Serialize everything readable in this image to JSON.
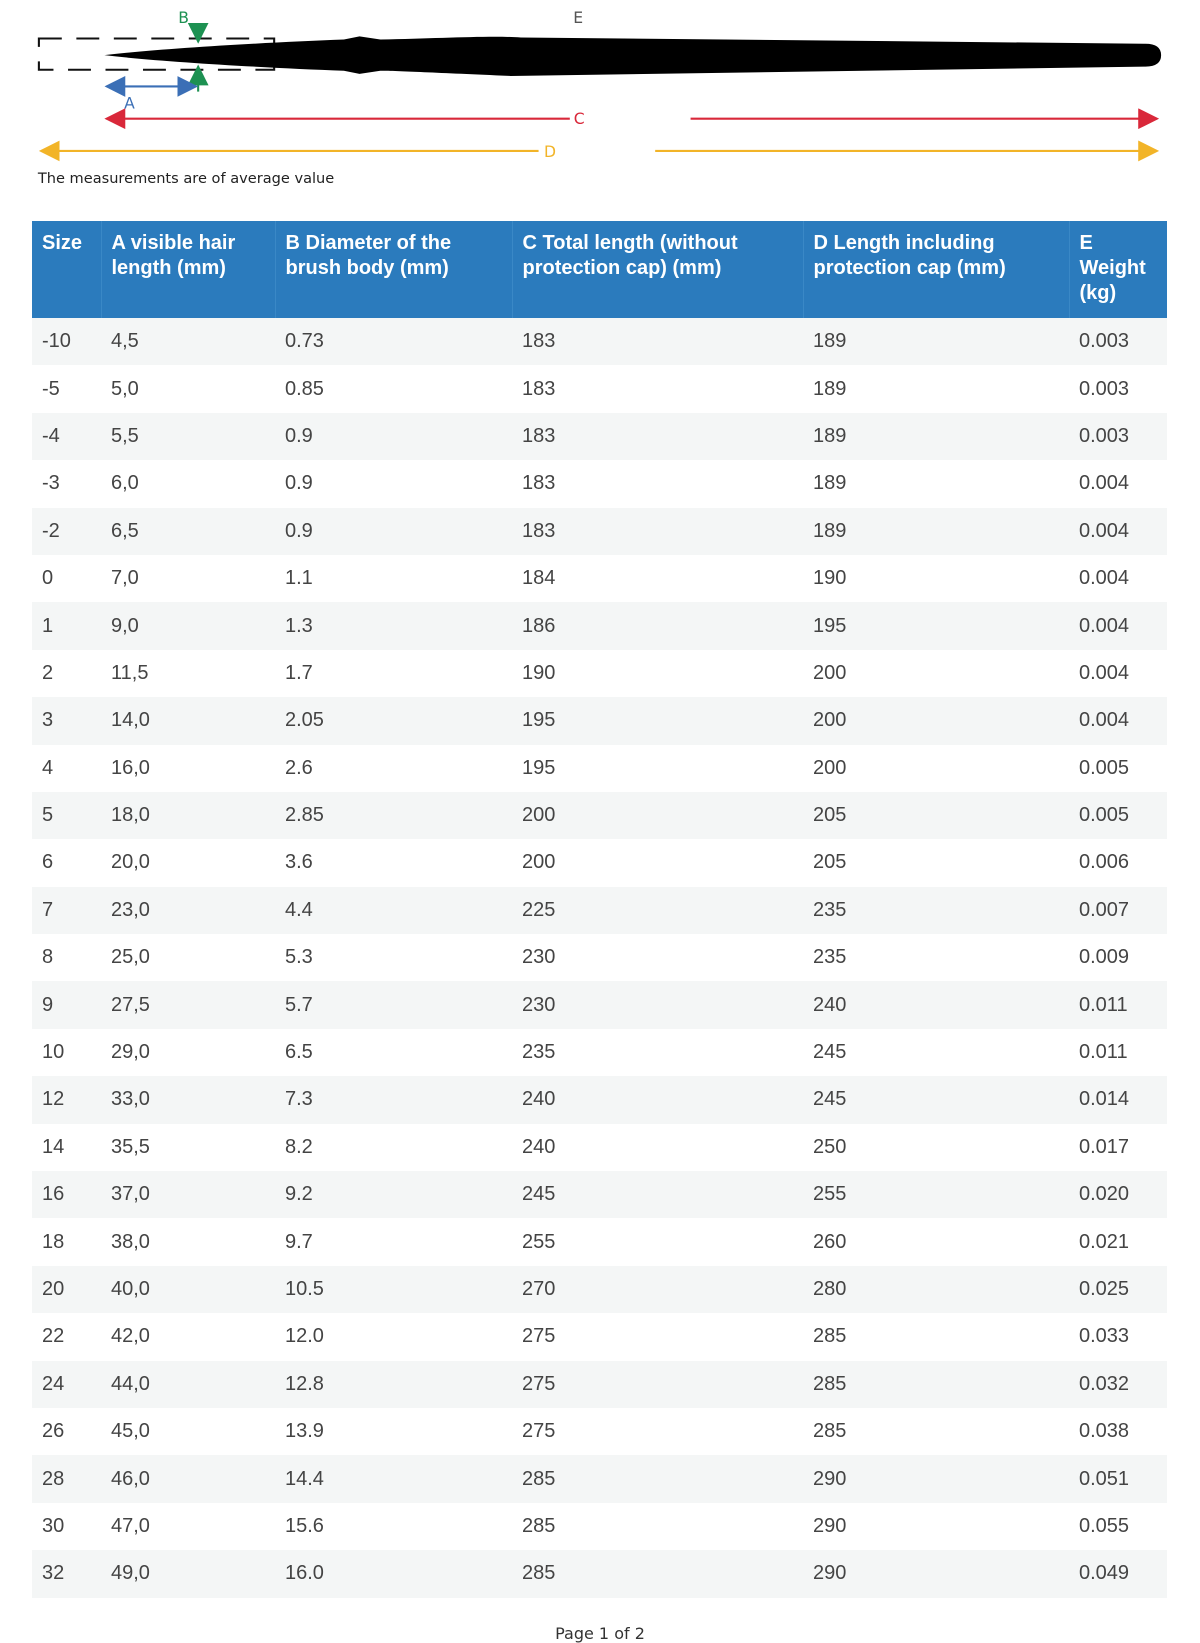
{
  "diagram": {
    "labels": {
      "a": "A",
      "b": "B",
      "c": "C",
      "d": "D",
      "e": "E"
    },
    "note": "The measurements are of average value"
  },
  "table": {
    "header": [
      "Size",
      "A visible hair length (mm)",
      "B Diameter of the brush body (mm)",
      "C Total length (without protection cap) (mm)",
      "D Length including protection cap (mm)",
      "E Weight (kg)"
    ],
    "rows": [
      [
        "-10",
        "4,5",
        "0.73",
        "183",
        "189",
        "0.003"
      ],
      [
        "-5",
        "5,0",
        "0.85",
        "183",
        "189",
        "0.003"
      ],
      [
        "-4",
        "5,5",
        "0.9",
        "183",
        "189",
        "0.003"
      ],
      [
        "-3",
        "6,0",
        "0.9",
        "183",
        "189",
        "0.004"
      ],
      [
        "-2",
        "6,5",
        "0.9",
        "183",
        "189",
        "0.004"
      ],
      [
        "0",
        "7,0",
        "1.1",
        "184",
        "190",
        "0.004"
      ],
      [
        "1",
        "9,0",
        "1.3",
        "186",
        "195",
        "0.004"
      ],
      [
        "2",
        "11,5",
        "1.7",
        "190",
        "200",
        "0.004"
      ],
      [
        "3",
        "14,0",
        "2.05",
        "195",
        "200",
        "0.004"
      ],
      [
        "4",
        "16,0",
        "2.6",
        "195",
        "200",
        "0.005"
      ],
      [
        "5",
        "18,0",
        "2.85",
        "200",
        "205",
        "0.005"
      ],
      [
        "6",
        "20,0",
        "3.6",
        "200",
        "205",
        "0.006"
      ],
      [
        "7",
        "23,0",
        "4.4",
        "225",
        "235",
        "0.007"
      ],
      [
        "8",
        "25,0",
        "5.3",
        "230",
        "235",
        "0.009"
      ],
      [
        "9",
        "27,5",
        "5.7",
        "230",
        "240",
        "0.011"
      ],
      [
        "10",
        "29,0",
        "6.5",
        "235",
        "245",
        "0.011"
      ],
      [
        "12",
        "33,0",
        "7.3",
        "240",
        "245",
        "0.014"
      ],
      [
        "14",
        "35,5",
        "8.2",
        "240",
        "250",
        "0.017"
      ],
      [
        "16",
        "37,0",
        "9.2",
        "245",
        "255",
        "0.020"
      ],
      [
        "18",
        "38,0",
        "9.7",
        "255",
        "260",
        "0.021"
      ],
      [
        "20",
        "40,0",
        "10.5",
        "270",
        "280",
        "0.025"
      ],
      [
        "22",
        "42,0",
        "12.0",
        "275",
        "285",
        "0.033"
      ],
      [
        "24",
        "44,0",
        "12.8",
        "275",
        "285",
        "0.032"
      ],
      [
        "26",
        "45,0",
        "13.9",
        "275",
        "285",
        "0.038"
      ],
      [
        "28",
        "46,0",
        "14.4",
        "285",
        "290",
        "0.051"
      ],
      [
        "30",
        "47,0",
        "15.6",
        "285",
        "290",
        "0.055"
      ],
      [
        "32",
        "49,0",
        "16.0",
        "285",
        "290",
        "0.049"
      ]
    ]
  },
  "footer": "Page 1 of 2"
}
